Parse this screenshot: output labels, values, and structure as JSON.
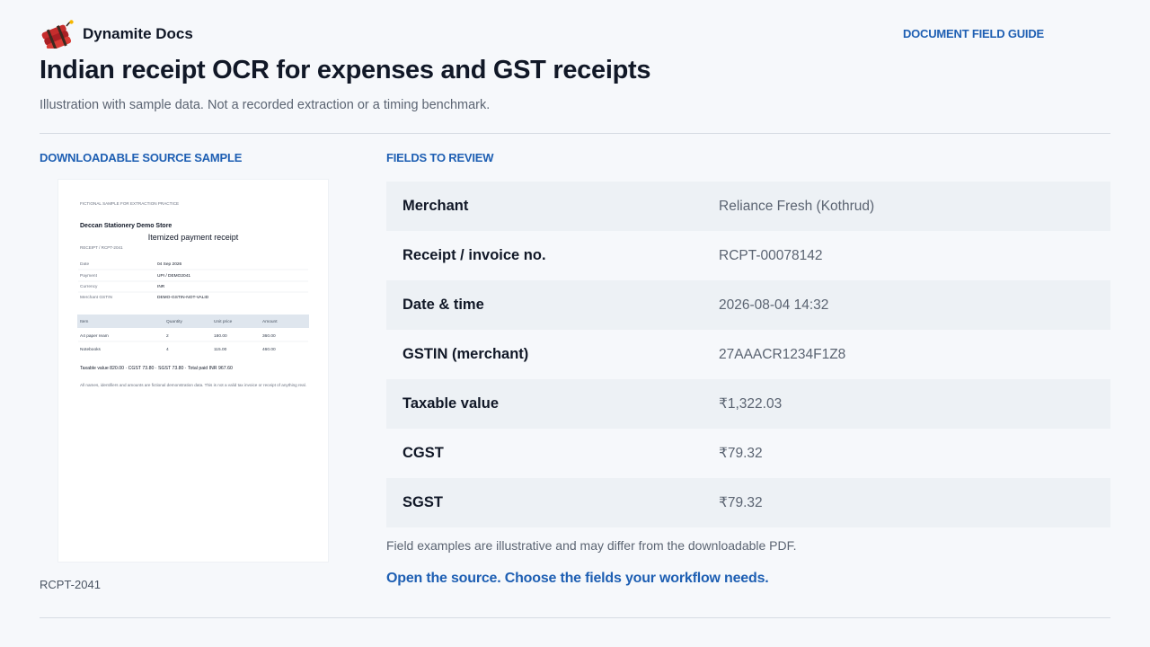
{
  "header": {
    "brand_name": "Dynamite Docs",
    "logo_icon": "dynamite-logo-icon",
    "guide_link": "DOCUMENT FIELD GUIDE"
  },
  "page": {
    "title": "Indian receipt OCR for expenses and GST receipts",
    "subtitle": "Illustration with sample data. Not a recorded extraction or a timing benchmark."
  },
  "left": {
    "section_label": "DOWNLOADABLE SOURCE SAMPLE",
    "sample_id": "RCPT-2041",
    "receipt": {
      "banner": "FICTIONAL SAMPLE FOR EXTRACTION PRACTICE",
      "store": "Deccan Stationery Demo Store",
      "heading": "Itemized payment receipt",
      "receipt_tag": "RECEIPT / RCPT-2041",
      "meta": [
        {
          "key": "Date",
          "value": "04 Sep 2026"
        },
        {
          "key": "Payment",
          "value": "UPI / DEMO2041"
        },
        {
          "key": "Currency",
          "value": "INR"
        },
        {
          "key": "Merchant GSTIN",
          "value": "DEMO-GSTIN-NOT-VALID"
        }
      ],
      "columns": [
        "Item",
        "Quantity",
        "Unit price",
        "Amount"
      ],
      "items": [
        [
          "A4 paper ream",
          "2",
          "180.00",
          "360.00"
        ],
        [
          "Notebooks",
          "4",
          "115.00",
          "460.00"
        ]
      ],
      "totals_line": "Taxable value 820.00 · CGST 73.80 · SGST 73.80 · Total paid INR 967.60",
      "footnote": "All names, identifiers and amounts are fictional demonstration data. This is not a valid tax invoice or receipt of anything real."
    }
  },
  "right": {
    "section_label": "FIELDS TO REVIEW",
    "fields": [
      {
        "label": "Merchant",
        "value": "Reliance Fresh (Kothrud)"
      },
      {
        "label": "Receipt / invoice no.",
        "value": "RCPT-00078142"
      },
      {
        "label": "Date & time",
        "value": "2026-08-04 14:32"
      },
      {
        "label": "GSTIN (merchant)",
        "value": "27AAACR1234F1Z8"
      },
      {
        "label": "Taxable value",
        "value": "₹1,322.03"
      },
      {
        "label": "CGST",
        "value": "₹79.32"
      },
      {
        "label": "SGST",
        "value": "₹79.32"
      }
    ],
    "note": "Field examples are illustrative and may differ from the downloadable PDF.",
    "cta": "Open the source. Choose the fields your workflow needs."
  },
  "colors": {
    "accent": "#1e5fb3",
    "text": "#111827",
    "muted": "#5b6472",
    "row_shade": "#edf1f5",
    "background": "#f6f8fb"
  }
}
